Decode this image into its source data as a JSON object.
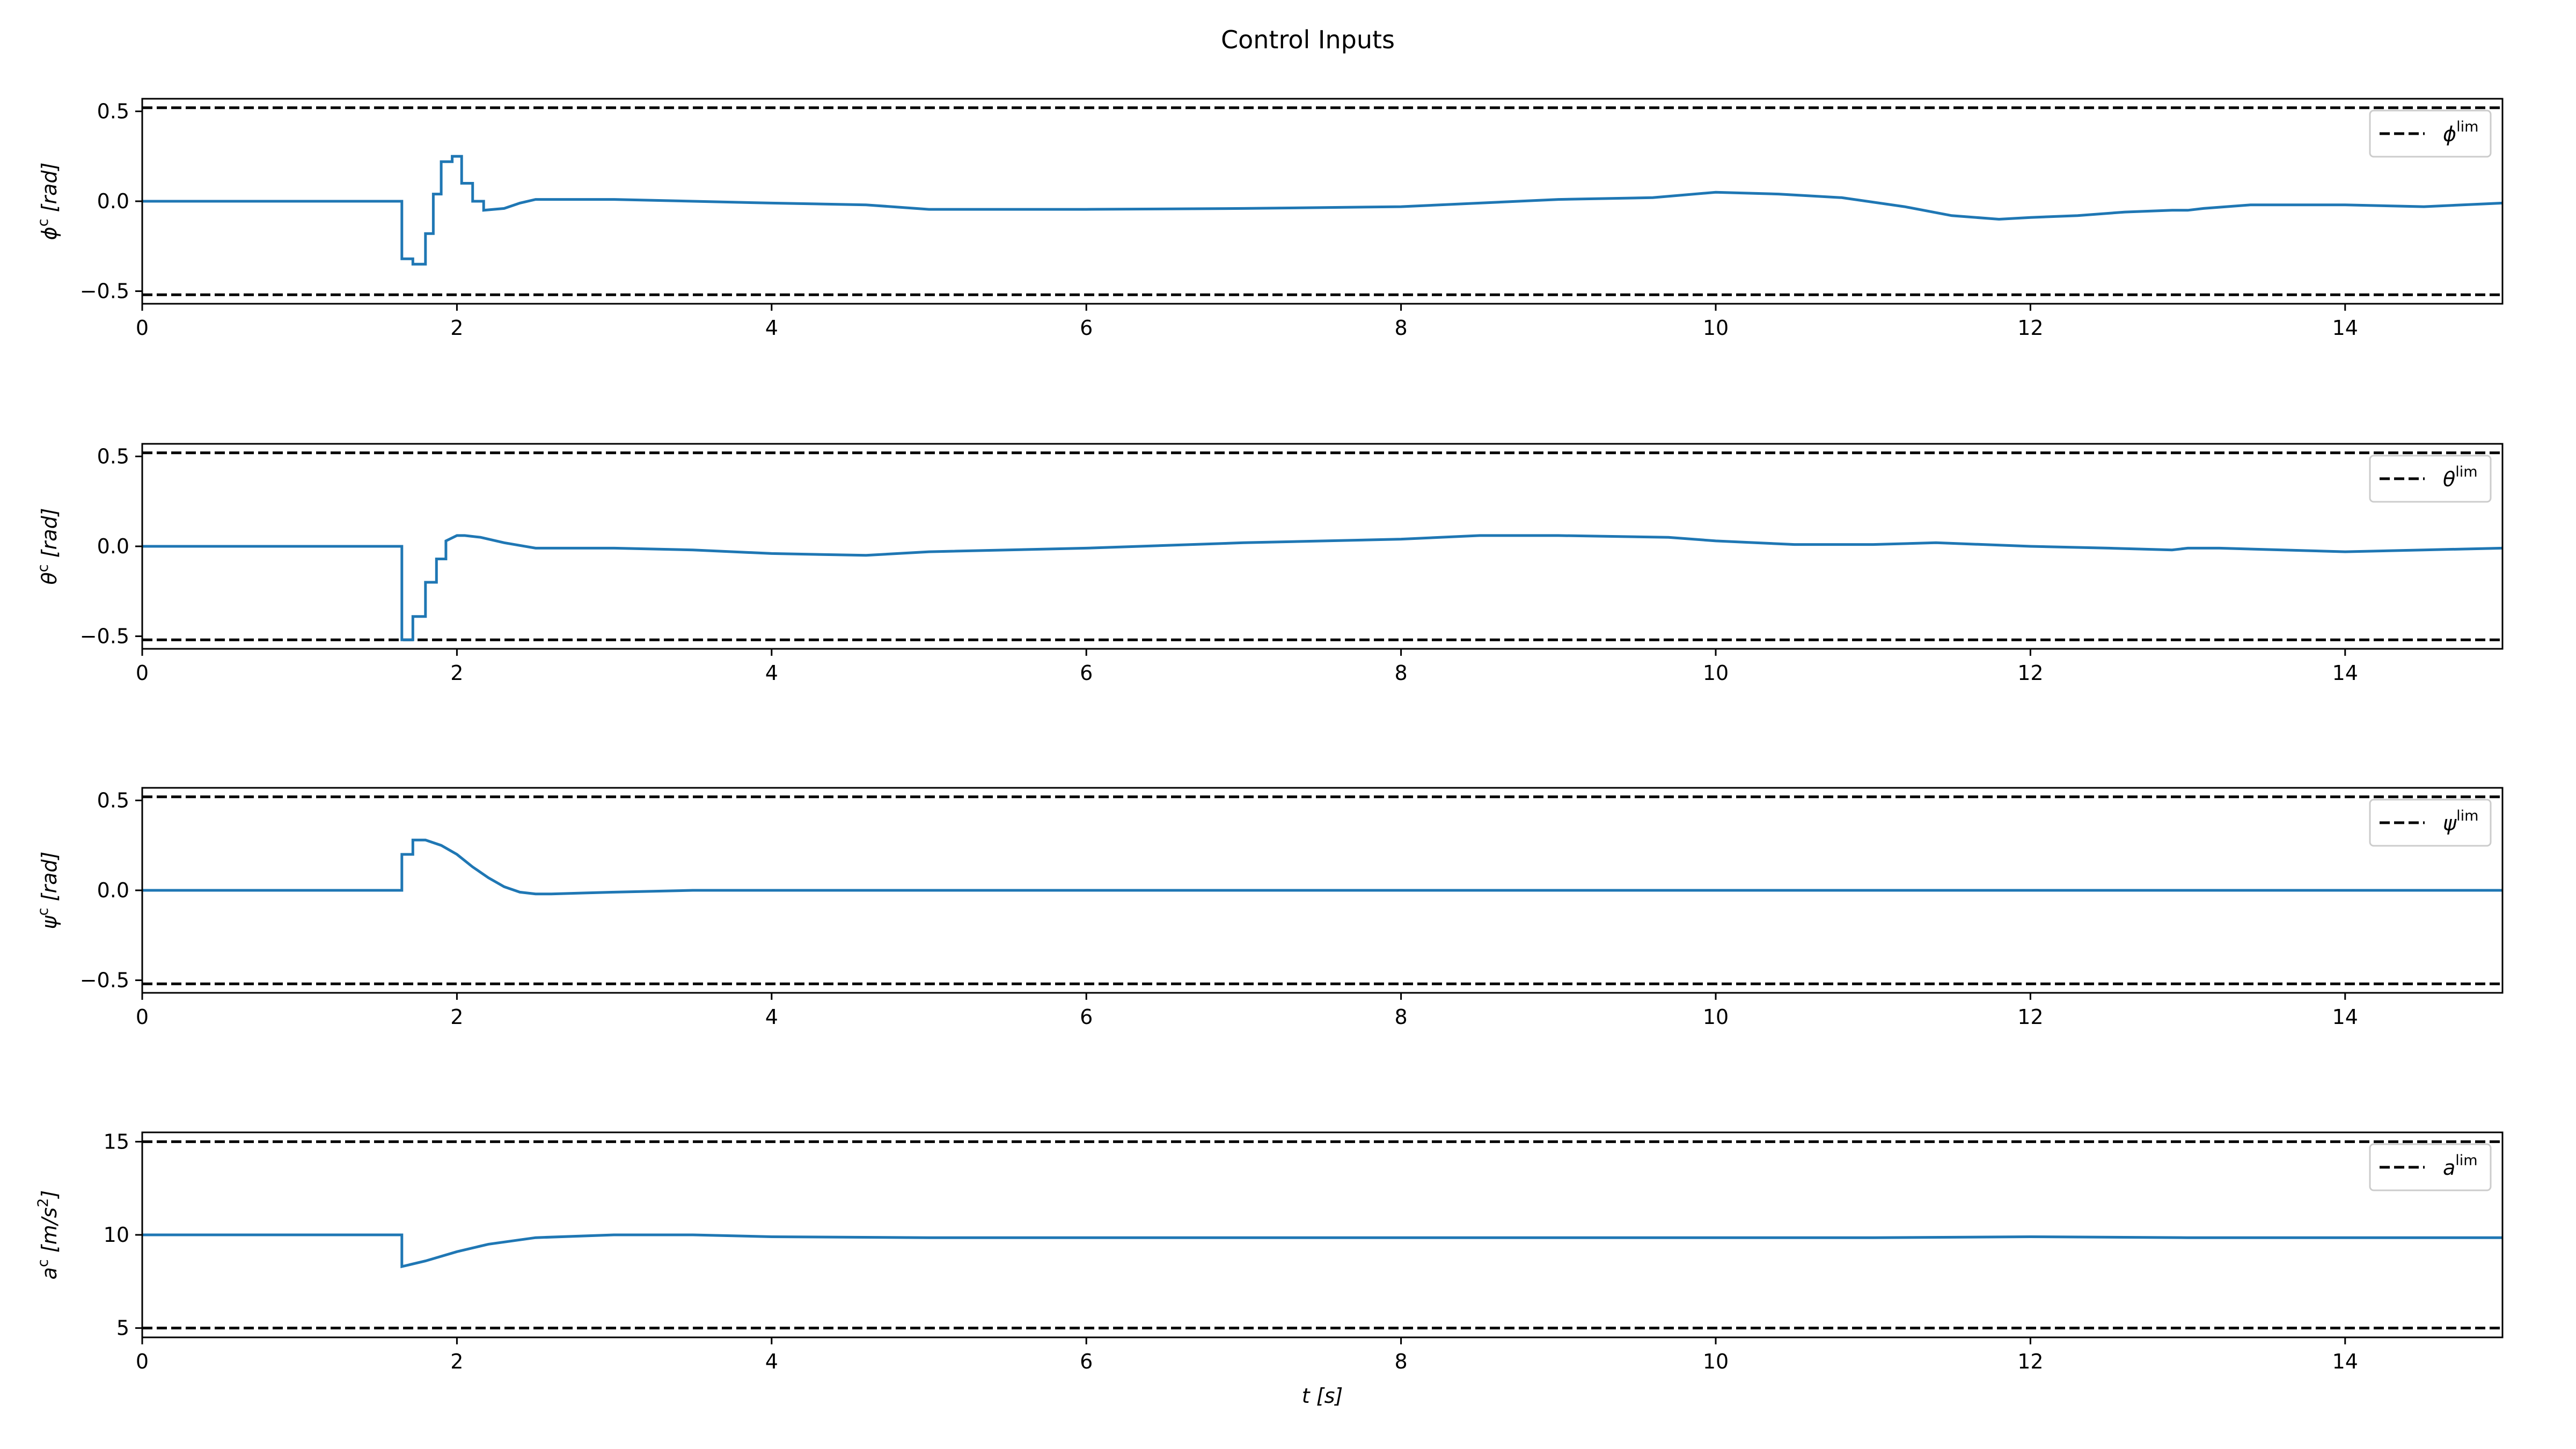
{
  "title": "Control Inputs",
  "colors": {
    "series": "#1f77b4",
    "limit": "#000000",
    "legend_border": "#cccccc"
  },
  "chart_data": [
    {
      "type": "line",
      "step": true,
      "ylabel": {
        "sym": "ϕ",
        "sup": "c",
        "unit": " [rad]"
      },
      "legend": {
        "sym": "ϕ",
        "sup": "lim",
        "position": "upper-right"
      },
      "limit": 0.52,
      "xlim": [
        0,
        15
      ],
      "ylim": [
        -0.57,
        0.57
      ],
      "xticks": [
        0,
        2,
        4,
        6,
        8,
        10,
        12,
        14
      ],
      "yticks": [
        -0.5,
        0.0,
        0.5
      ],
      "ytick_labels": [
        "−0.5",
        "0.0",
        "0.5"
      ],
      "xtick_labels": [
        "0",
        "2",
        "4",
        "6",
        "8",
        "10",
        "12",
        "14"
      ],
      "x": [
        0,
        1.65,
        1.65,
        1.72,
        1.72,
        1.8,
        1.8,
        1.85,
        1.85,
        1.9,
        1.9,
        1.97,
        1.97,
        2.03,
        2.03,
        2.1,
        2.1,
        2.17,
        2.17,
        2.3,
        2.4,
        2.5,
        3.0,
        3.5,
        4.0,
        4.6,
        5.0,
        6.0,
        7.0,
        8.0,
        9.0,
        9.6,
        10.0,
        10.4,
        10.8,
        11.2,
        11.5,
        11.8,
        12.0,
        12.3,
        12.6,
        12.9,
        13.0,
        13.1,
        13.4,
        14.0,
        14.5,
        15.0
      ],
      "y": [
        0.0,
        0.0,
        -0.32,
        -0.32,
        -0.35,
        -0.35,
        -0.18,
        -0.18,
        0.04,
        0.04,
        0.22,
        0.22,
        0.25,
        0.25,
        0.1,
        0.1,
        0.0,
        0.0,
        -0.05,
        -0.04,
        -0.01,
        0.01,
        0.01,
        0.0,
        -0.01,
        -0.02,
        -0.045,
        -0.045,
        -0.04,
        -0.03,
        0.01,
        0.02,
        0.05,
        0.04,
        0.02,
        -0.03,
        -0.08,
        -0.1,
        -0.09,
        -0.08,
        -0.06,
        -0.05,
        -0.05,
        -0.04,
        -0.02,
        -0.02,
        -0.03,
        -0.01
      ]
    },
    {
      "type": "line",
      "step": true,
      "ylabel": {
        "sym": "θ",
        "sup": "c",
        "unit": " [rad]"
      },
      "legend": {
        "sym": "θ",
        "sup": "lim",
        "position": "upper-right"
      },
      "limit": 0.52,
      "xlim": [
        0,
        15
      ],
      "ylim": [
        -0.57,
        0.57
      ],
      "xticks": [
        0,
        2,
        4,
        6,
        8,
        10,
        12,
        14
      ],
      "yticks": [
        -0.5,
        0.0,
        0.5
      ],
      "ytick_labels": [
        "−0.5",
        "0.0",
        "0.5"
      ],
      "xtick_labels": [
        "0",
        "2",
        "4",
        "6",
        "8",
        "10",
        "12",
        "14"
      ],
      "x": [
        0,
        1.65,
        1.65,
        1.72,
        1.72,
        1.8,
        1.8,
        1.87,
        1.87,
        1.93,
        1.93,
        2.0,
        2.05,
        2.15,
        2.3,
        2.5,
        3.0,
        3.5,
        4.0,
        4.6,
        5.0,
        6.0,
        7.0,
        8.0,
        8.5,
        9.0,
        9.7,
        10.0,
        10.5,
        11.0,
        11.4,
        12.0,
        12.5,
        12.9,
        13.0,
        13.2,
        13.6,
        14.0,
        14.5,
        15.0
      ],
      "y": [
        0.0,
        0.0,
        -0.52,
        -0.52,
        -0.39,
        -0.39,
        -0.2,
        -0.2,
        -0.07,
        -0.07,
        0.03,
        0.06,
        0.06,
        0.05,
        0.02,
        -0.01,
        -0.01,
        -0.02,
        -0.04,
        -0.05,
        -0.03,
        -0.01,
        0.02,
        0.04,
        0.06,
        0.06,
        0.05,
        0.03,
        0.01,
        0.01,
        0.02,
        0.0,
        -0.01,
        -0.02,
        -0.01,
        -0.01,
        -0.02,
        -0.03,
        -0.02,
        -0.01
      ]
    },
    {
      "type": "line",
      "step": true,
      "ylabel": {
        "sym": "ψ",
        "sup": "c",
        "unit": " [rad]"
      },
      "legend": {
        "sym": "ψ",
        "sup": "lim",
        "position": "upper-right"
      },
      "limit": 0.52,
      "xlim": [
        0,
        15
      ],
      "ylim": [
        -0.57,
        0.57
      ],
      "xticks": [
        0,
        2,
        4,
        6,
        8,
        10,
        12,
        14
      ],
      "yticks": [
        -0.5,
        0.0,
        0.5
      ],
      "ytick_labels": [
        "−0.5",
        "0.0",
        "0.5"
      ],
      "xtick_labels": [
        "0",
        "2",
        "4",
        "6",
        "8",
        "10",
        "12",
        "14"
      ],
      "x": [
        0,
        1.65,
        1.65,
        1.72,
        1.72,
        1.8,
        1.9,
        2.0,
        2.1,
        2.2,
        2.3,
        2.4,
        2.5,
        2.6,
        2.8,
        3.0,
        3.5,
        4.0,
        15.0
      ],
      "y": [
        0.0,
        0.0,
        0.2,
        0.2,
        0.28,
        0.28,
        0.25,
        0.2,
        0.13,
        0.07,
        0.02,
        -0.01,
        -0.02,
        -0.02,
        -0.015,
        -0.01,
        0.0,
        0.0,
        0.0
      ]
    },
    {
      "type": "line",
      "step": true,
      "ylabel": {
        "sym": "a",
        "sup": "c",
        "unit": " [m/s",
        "unit_sup": "2",
        "unit_end": "]"
      },
      "legend": {
        "sym": "a",
        "sup": "lim",
        "position": "upper-right"
      },
      "xlabel": {
        "sym": "t",
        "unit": " [s]"
      },
      "limit_low": 5,
      "limit_high": 15,
      "xlim": [
        0,
        15
      ],
      "ylim": [
        4.5,
        15.5
      ],
      "xticks": [
        0,
        2,
        4,
        6,
        8,
        10,
        12,
        14
      ],
      "yticks": [
        5,
        10,
        15
      ],
      "ytick_labels": [
        "5",
        "10",
        "15"
      ],
      "xtick_labels": [
        "0",
        "2",
        "4",
        "6",
        "8",
        "10",
        "12",
        "14"
      ],
      "x": [
        0,
        1.65,
        1.65,
        1.8,
        2.0,
        2.2,
        2.5,
        3.0,
        3.5,
        4.0,
        5.0,
        8.0,
        11.0,
        12.0,
        13.0,
        15.0
      ],
      "y": [
        10.0,
        10.0,
        8.3,
        8.6,
        9.1,
        9.5,
        9.85,
        10.0,
        10.0,
        9.9,
        9.85,
        9.85,
        9.85,
        9.9,
        9.85,
        9.85
      ]
    }
  ]
}
